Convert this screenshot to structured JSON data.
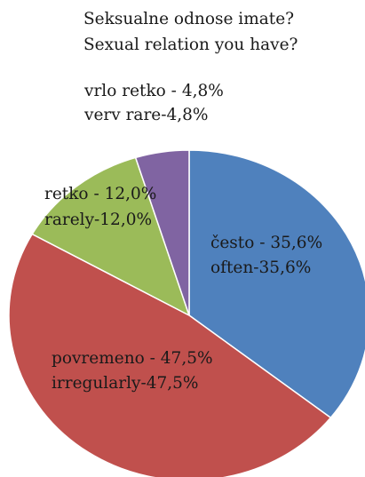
{
  "chart_data": {
    "type": "pie",
    "title": "Seksualne odnose imate?",
    "subtitle": "Sexual relation you have?",
    "slices": [
      {
        "label": "često - 35,6%",
        "label_en": "often-35,6%",
        "value": 35.6,
        "color": "#4f81bd"
      },
      {
        "label": "povremeno - 47,5%",
        "label_en": "irregularly-47,5%",
        "value": 47.5,
        "color": "#c0504d"
      },
      {
        "label": "retko - 12,0%",
        "label_en": "rarely-12,0%",
        "value": 12.0,
        "color": "#9bbb59"
      },
      {
        "label": "vrlo retko - 4,8%",
        "label_en": "verv rare-4,8%",
        "value": 4.8,
        "color": "#8064a2"
      }
    ]
  }
}
